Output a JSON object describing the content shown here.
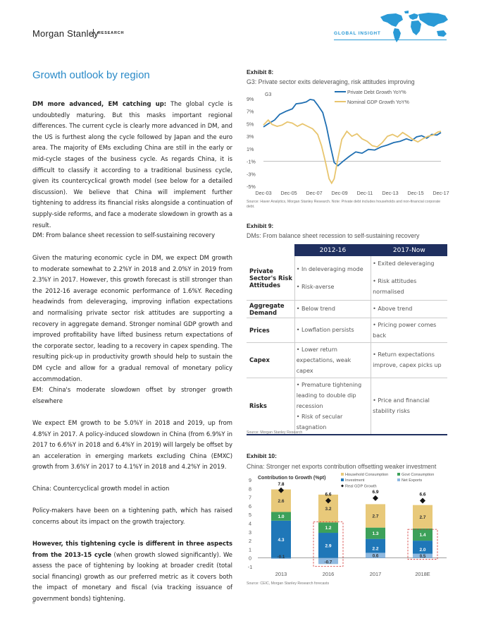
{
  "header": {
    "brand": "Morgan Stanley",
    "research": "RESEARCH",
    "global_insight": "GLOBAL INSIGHT"
  },
  "section_title": "Growth outlook by region",
  "body": {
    "p1_bold": "DM more advanced, EM catching up:",
    "p1_text": " The global cycle is undoubtedly maturing. But this masks important regional differences. The current cycle is clearly more advanced in DM, and the US is furthest along the cycle followed by Japan and the euro area. The majority of EMs excluding China are still in the early or mid-cycle stages of the business cycle. As regards China, it is difficult to classify it according to a traditional business cycle, given its countercyclical growth model (see below for a detailed discussion). We believe that China will implement further tightening to address its financial risks alongside a continuation of supply-side reforms, and face a moderate slowdown in growth as a result.",
    "h2": "DM: From balance sheet recession to self-sustaining recovery",
    "p2": "Given the maturing economic cycle in DM, we expect DM growth to moderate somewhat to 2.2%Y in 2018 and 2.0%Y in 2019 from 2.3%Y in 2017. However, this growth forecast is still stronger than the 2012-16 average economic performance of 1.6%Y. Receding headwinds from deleveraging, improving inflation expectations and normalising private sector risk attitudes are supporting a recovery in aggregate demand. Stronger nominal GDP growth and improved profitability have lifted business return expectations of the corporate sector, leading to a recovery in capex spending. The resulting pick-up in productivity growth should help to sustain the DM cycle and allow for a gradual removal of monetary policy accommodation.",
    "h3": "EM: China's moderate slowdown offset by stronger growth elsewhere",
    "p3": "We expect EM growth to be 5.0%Y in 2018 and 2019, up from 4.8%Y in 2017. A policy-induced slowdown in China (from 6.9%Y in 2017 to 6.6%Y in 2018 and 6.4%Y in 2019) will largely be offset by an acceleration in emerging markets excluding China (EMXC) growth from 3.6%Y in 2017 to 4.1%Y in 2018 and 4.2%Y in 2019.",
    "h4": "China: Countercyclical growth model in action",
    "p4": "Policy-makers have been on a tightening path, which has raised concerns about its impact on the growth trajectory.",
    "p5_bold": "However, this tightening cycle is different in three aspects from the 2013-15 cycle",
    "p5_text": " (when growth slowed significantly). We assess the pace of tightening by looking at broader credit (total social financing) growth as our preferred metric as it covers both the impact of monetary and fiscal (via tracking issuance of government bonds) tightening."
  },
  "exhibit8": {
    "label": "Exhibit 8:",
    "title": "G3: Private sector exits deleveraging, risk attitudes improving",
    "source": "Source: Haver Analytics, Morgan Stanley Research. Note: Private debt includes households and non-financial corporate debt.",
    "chart_data": {
      "type": "line",
      "title": "G3",
      "y_ticks": [
        "9%",
        "7%",
        "5%",
        "3%",
        "1%",
        "-1%",
        "-3%",
        "-5%"
      ],
      "ylim": [
        -5,
        9
      ],
      "x_ticks": [
        "Dec-03",
        "Dec-05",
        "Dec-07",
        "Dec-09",
        "Dec-11",
        "Dec-13",
        "Dec-15",
        "Dec-17"
      ],
      "x_range": [
        2003.92,
        2017.92
      ],
      "series": [
        {
          "name": "Private Debt Growth YoY%",
          "color": "#1f6fb2",
          "points": [
            [
              2003.92,
              4.5
            ],
            [
              2004.3,
              5.0
            ],
            [
              2004.8,
              5.6
            ],
            [
              2005.2,
              6.5
            ],
            [
              2005.7,
              7.0
            ],
            [
              2006.2,
              7.4
            ],
            [
              2006.5,
              8.2
            ],
            [
              2006.9,
              8.3
            ],
            [
              2007.3,
              8.5
            ],
            [
              2007.6,
              8.9
            ],
            [
              2007.9,
              8.8
            ],
            [
              2008.2,
              8.0
            ],
            [
              2008.6,
              6.8
            ],
            [
              2008.9,
              4.5
            ],
            [
              2009.2,
              1.5
            ],
            [
              2009.5,
              -1.2
            ],
            [
              2009.8,
              -1.7
            ],
            [
              2010.2,
              -1.0
            ],
            [
              2010.7,
              -0.2
            ],
            [
              2011.2,
              0.5
            ],
            [
              2011.7,
              0.3
            ],
            [
              2012.2,
              0.9
            ],
            [
              2012.7,
              0.8
            ],
            [
              2013.2,
              1.3
            ],
            [
              2013.7,
              1.6
            ],
            [
              2014.2,
              2.0
            ],
            [
              2014.7,
              2.2
            ],
            [
              2015.2,
              2.6
            ],
            [
              2015.6,
              2.3
            ],
            [
              2016.0,
              2.9
            ],
            [
              2016.4,
              3.1
            ],
            [
              2016.8,
              2.7
            ],
            [
              2017.2,
              3.3
            ],
            [
              2017.6,
              3.2
            ],
            [
              2017.92,
              3.6
            ]
          ]
        },
        {
          "name": "Nominal GDP Growth YoY%",
          "color": "#e8c56e",
          "points": [
            [
              2003.92,
              4.8
            ],
            [
              2004.3,
              5.6
            ],
            [
              2004.6,
              4.9
            ],
            [
              2005.0,
              4.6
            ],
            [
              2005.4,
              4.8
            ],
            [
              2005.8,
              5.3
            ],
            [
              2006.2,
              5.1
            ],
            [
              2006.6,
              4.6
            ],
            [
              2007.0,
              5.0
            ],
            [
              2007.4,
              4.6
            ],
            [
              2007.8,
              4.2
            ],
            [
              2008.2,
              3.3
            ],
            [
              2008.5,
              1.5
            ],
            [
              2008.8,
              -1.0
            ],
            [
              2009.1,
              -3.8
            ],
            [
              2009.3,
              -4.5
            ],
            [
              2009.5,
              -3.8
            ],
            [
              2009.8,
              -0.5
            ],
            [
              2010.1,
              2.5
            ],
            [
              2010.5,
              3.8
            ],
            [
              2010.9,
              3.0
            ],
            [
              2011.3,
              3.4
            ],
            [
              2011.7,
              2.6
            ],
            [
              2012.1,
              2.2
            ],
            [
              2012.5,
              1.5
            ],
            [
              2012.9,
              1.3
            ],
            [
              2013.3,
              2.0
            ],
            [
              2013.7,
              3.0
            ],
            [
              2014.1,
              3.3
            ],
            [
              2014.5,
              2.9
            ],
            [
              2014.9,
              3.6
            ],
            [
              2015.3,
              3.1
            ],
            [
              2015.7,
              2.5
            ],
            [
              2016.1,
              2.1
            ],
            [
              2016.5,
              2.6
            ],
            [
              2016.9,
              3.0
            ],
            [
              2017.3,
              3.2
            ],
            [
              2017.7,
              3.7
            ],
            [
              2017.92,
              3.8
            ]
          ]
        }
      ]
    }
  },
  "exhibit9": {
    "label": "Exhibit 9:",
    "title": "DMs: From balance sheet recession to self-sustaining recovery",
    "source": "Source: Morgan Stanley Research",
    "columns": [
      "2012-16",
      "2017-Now"
    ],
    "rows": [
      {
        "head": "Private Sector's Risk Attitudes",
        "c1": [
          "• In deleveraging mode",
          "• Risk-averse"
        ],
        "c2": [
          "• Exited deleveraging",
          "• Risk attitudes normalised"
        ]
      },
      {
        "head": "Aggregate Demand",
        "c1": [
          "• Below trend"
        ],
        "c2": [
          "• Above trend"
        ]
      },
      {
        "head": "Prices",
        "c1": [
          "• Lowflation persists"
        ],
        "c2": [
          "• Pricing power comes back"
        ]
      },
      {
        "head": "Capex",
        "c1": [
          "• Lower return expectations, weak capex"
        ],
        "c2": [
          "• Return expectations improve, capex picks up"
        ]
      },
      {
        "head": "Risks",
        "c1": [
          "• Premature tightening leading to double dip recession",
          "• Risk of secular stagnation"
        ],
        "c2": [
          "• Price and financial stability risks"
        ]
      }
    ]
  },
  "exhibit10": {
    "label": "Exhibit 10:",
    "title": "China: Stronger net exports contribution offsetting weaker investment",
    "source": "Source: CEIC, Morgan Stanley Research forecasts",
    "chart_data": {
      "type": "bar",
      "title": "Contribution to Growth (%pt)",
      "categories": [
        "2013",
        "2016",
        "2017",
        "2018E"
      ],
      "ylim": [
        -1,
        9
      ],
      "y_ticks": [
        "9",
        "8",
        "7",
        "6",
        "5",
        "4",
        "3",
        "2",
        "1",
        "0",
        "-1"
      ],
      "series": [
        {
          "name": "Household Consumption",
          "color": "#e8c97a",
          "values": [
            2.6,
            3.2,
            2.7,
            2.7
          ]
        },
        {
          "name": "Govt Consumption",
          "color": "#3da15a",
          "values": [
            1.0,
            1.2,
            1.3,
            1.4
          ]
        },
        {
          "name": "Investment",
          "color": "#1f77b8",
          "values": [
            4.3,
            2.9,
            2.2,
            2.0
          ]
        },
        {
          "name": "Net Exports",
          "color": "#8fb9e0",
          "values": [
            -0.1,
            -0.7,
            0.6,
            0.5
          ]
        }
      ],
      "gdp": {
        "name": "Real GDP Growth",
        "values": [
          7.8,
          6.6,
          6.9,
          6.6
        ]
      }
    }
  },
  "page_number": "6"
}
